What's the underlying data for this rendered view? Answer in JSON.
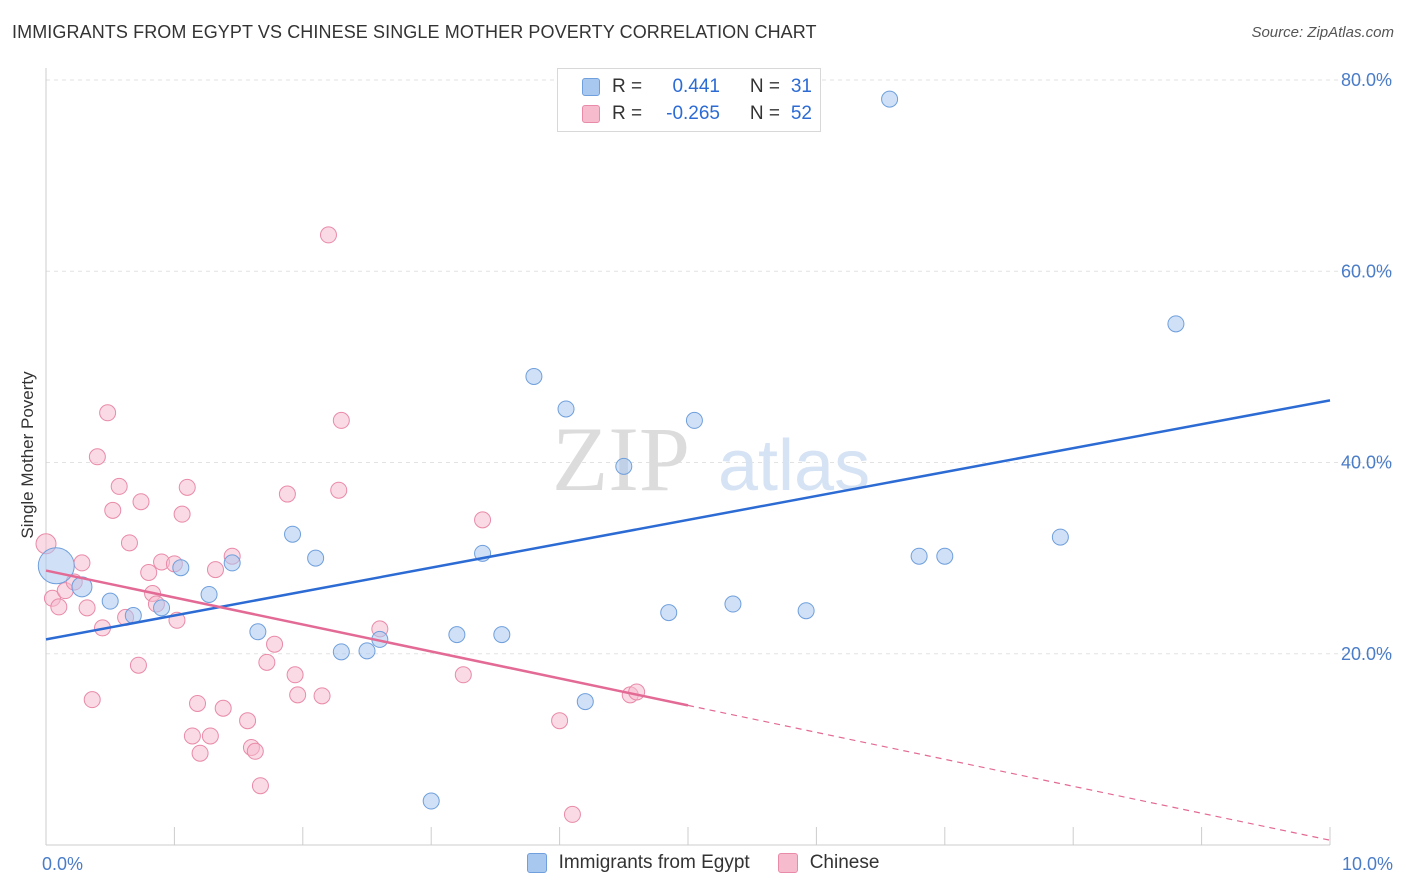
{
  "header": {
    "title": "IMMIGRANTS FROM EGYPT VS CHINESE SINGLE MOTHER POVERTY CORRELATION CHART",
    "source": "Source: ZipAtlas.com"
  },
  "watermark": {
    "zip": "ZIP",
    "atlas": "atlas"
  },
  "legend": {
    "rows": [
      {
        "r_label": "R =",
        "r_value": "0.441",
        "n_label": "N =",
        "n_value": "31",
        "color": "#a9c8f0",
        "border": "#6f9fdc"
      },
      {
        "r_label": "R =",
        "r_value": "-0.265",
        "n_label": "N =",
        "n_value": "52",
        "color": "#f6bccd",
        "border": "#e98aa8"
      }
    ]
  },
  "bottom_legend": [
    {
      "label": "Immigrants from Egypt",
      "color": "#a9c8f0",
      "border": "#6f9fdc"
    },
    {
      "label": "Chinese",
      "color": "#f6bccd",
      "border": "#e98aa8"
    }
  ],
  "chart_data": {
    "type": "scatter",
    "title": "IMMIGRANTS FROM EGYPT VS CHINESE SINGLE MOTHER POVERTY CORRELATION CHART",
    "xlabel": "",
    "ylabel": "Single Mother Poverty",
    "xlim": [
      0,
      10
    ],
    "ylim": [
      0,
      80
    ],
    "x_tick_labels": [
      "0.0%",
      "10.0%"
    ],
    "y_ticks": [
      20,
      40,
      60,
      80
    ],
    "y_tick_labels": [
      "20.0%",
      "40.0%",
      "60.0%",
      "80.0%"
    ],
    "grid": true,
    "legend_position": "top-center",
    "series": [
      {
        "name": "Immigrants from Egypt",
        "color": "#6f9fdc",
        "fill": "#a9c8f0",
        "trend": {
          "x": [
            0,
            10
          ],
          "y": [
            21.5,
            46.5
          ],
          "color": "#2c6bd4"
        },
        "points": [
          [
            0.08,
            29.2,
            18
          ],
          [
            0.28,
            27.0,
            10
          ],
          [
            0.5,
            25.5,
            8
          ],
          [
            0.68,
            24.0,
            8
          ],
          [
            0.9,
            24.8,
            8
          ],
          [
            1.05,
            29.0,
            8
          ],
          [
            1.27,
            26.2,
            8
          ],
          [
            1.45,
            29.5,
            8
          ],
          [
            1.65,
            22.3,
            8
          ],
          [
            1.92,
            32.5,
            8
          ],
          [
            2.1,
            30.0,
            8
          ],
          [
            2.3,
            20.2,
            8
          ],
          [
            2.5,
            20.3,
            8
          ],
          [
            2.6,
            21.5,
            8
          ],
          [
            3.0,
            4.6,
            8
          ],
          [
            3.2,
            22.0,
            8
          ],
          [
            3.4,
            30.5,
            8
          ],
          [
            3.55,
            22.0,
            8
          ],
          [
            3.8,
            49.0,
            8
          ],
          [
            4.05,
            45.6,
            8
          ],
          [
            4.2,
            15.0,
            8
          ],
          [
            4.5,
            39.6,
            8
          ],
          [
            4.85,
            24.3,
            8
          ],
          [
            5.05,
            44.4,
            8
          ],
          [
            5.35,
            25.2,
            8
          ],
          [
            5.92,
            24.5,
            8
          ],
          [
            6.57,
            78.0,
            8
          ],
          [
            6.8,
            30.2,
            8
          ],
          [
            7.0,
            30.2,
            8
          ],
          [
            7.9,
            32.2,
            8
          ],
          [
            8.8,
            54.5,
            8
          ]
        ]
      },
      {
        "name": "Chinese",
        "color": "#e98aa8",
        "fill": "#f6bccd",
        "trend": {
          "x": [
            0,
            5
          ],
          "y": [
            28.7,
            14.6
          ],
          "x_dashed_end": 10,
          "y_dashed_end": 0.5,
          "color": "#e36a95"
        },
        "points": [
          [
            0.0,
            31.5,
            10
          ],
          [
            0.05,
            25.8,
            8
          ],
          [
            0.1,
            24.9,
            8
          ],
          [
            0.15,
            26.6,
            8
          ],
          [
            0.22,
            27.5,
            8
          ],
          [
            0.28,
            29.5,
            8
          ],
          [
            0.32,
            24.8,
            8
          ],
          [
            0.36,
            15.2,
            8
          ],
          [
            0.4,
            40.6,
            8
          ],
          [
            0.44,
            22.7,
            8
          ],
          [
            0.48,
            45.2,
            8
          ],
          [
            0.52,
            35.0,
            8
          ],
          [
            0.57,
            37.5,
            8
          ],
          [
            0.62,
            23.8,
            8
          ],
          [
            0.65,
            31.6,
            8
          ],
          [
            0.72,
            18.8,
            8
          ],
          [
            0.74,
            35.9,
            8
          ],
          [
            0.8,
            28.5,
            8
          ],
          [
            0.83,
            26.3,
            8
          ],
          [
            0.86,
            25.2,
            8
          ],
          [
            0.9,
            29.6,
            8
          ],
          [
            1.0,
            29.4,
            8
          ],
          [
            1.02,
            23.5,
            8
          ],
          [
            1.06,
            34.6,
            8
          ],
          [
            1.1,
            37.4,
            8
          ],
          [
            1.14,
            11.4,
            8
          ],
          [
            1.18,
            14.8,
            8
          ],
          [
            1.2,
            9.6,
            8
          ],
          [
            1.28,
            11.4,
            8
          ],
          [
            1.32,
            28.8,
            8
          ],
          [
            1.38,
            14.3,
            8
          ],
          [
            1.45,
            30.2,
            8
          ],
          [
            1.57,
            13.0,
            8
          ],
          [
            1.6,
            10.2,
            8
          ],
          [
            1.63,
            9.8,
            8
          ],
          [
            1.67,
            6.2,
            8
          ],
          [
            1.72,
            19.1,
            8
          ],
          [
            1.78,
            21.0,
            8
          ],
          [
            1.88,
            36.7,
            8
          ],
          [
            1.94,
            17.8,
            8
          ],
          [
            1.96,
            15.7,
            8
          ],
          [
            2.15,
            15.6,
            8
          ],
          [
            2.2,
            63.8,
            8
          ],
          [
            2.28,
            37.1,
            8
          ],
          [
            2.3,
            44.4,
            8
          ],
          [
            2.6,
            22.6,
            8
          ],
          [
            3.25,
            17.8,
            8
          ],
          [
            3.4,
            34.0,
            8
          ],
          [
            4.0,
            13.0,
            8
          ],
          [
            4.1,
            3.2,
            8
          ],
          [
            4.55,
            15.7,
            8
          ],
          [
            4.6,
            16.0,
            8
          ]
        ]
      }
    ]
  }
}
